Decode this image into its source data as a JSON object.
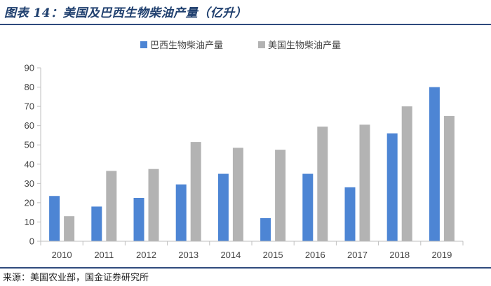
{
  "figure": {
    "title": "图表 14：美国及巴西生物柴油产量（亿升）",
    "source": "来源：美国农业部，国金证券研究所"
  },
  "colors": {
    "brazil": "#4d85d4",
    "usa": "#b3b3b3",
    "axis": "#bfbfbf"
  },
  "chart_data": {
    "type": "bar",
    "categories": [
      "2010",
      "2011",
      "2012",
      "2013",
      "2014",
      "2015",
      "2016",
      "2017",
      "2018",
      "2019"
    ],
    "series": [
      {
        "name": "巴西生物柴油产量",
        "values": [
          23.5,
          18,
          22.5,
          29.5,
          35,
          12,
          35,
          28,
          56,
          80
        ]
      },
      {
        "name": "美国生物柴油产量",
        "values": [
          13,
          36.5,
          37.5,
          51.5,
          48.5,
          47.5,
          59.5,
          60.5,
          70,
          65
        ]
      }
    ],
    "ylim": [
      0,
      90
    ],
    "yticks": [
      0,
      10,
      20,
      30,
      40,
      50,
      60,
      70,
      80,
      90
    ],
    "grid": false,
    "legend": "top-center"
  }
}
